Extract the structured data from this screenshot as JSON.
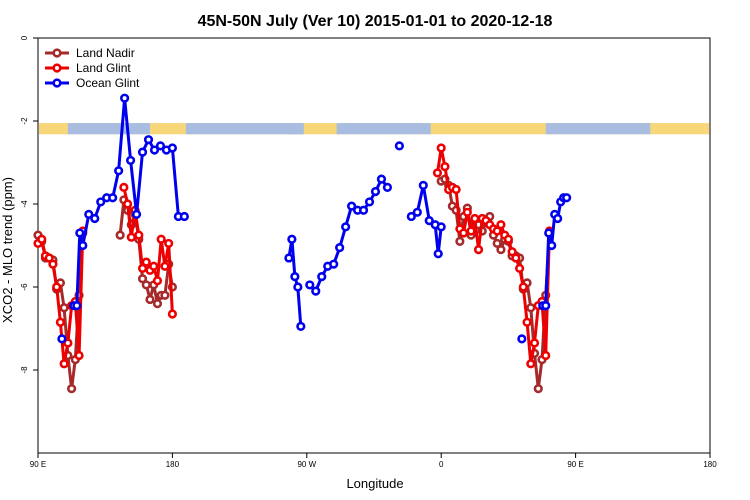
{
  "chart_data": {
    "type": "line",
    "title": "45N-50N July (Ver 10)   2015-01-01 to 2020-12-18",
    "xlabel": "Longitude",
    "ylabel": "XCO2 - MLO trend (ppm)",
    "xlim": [
      90,
      450
    ],
    "ylim": [
      -10,
      0
    ],
    "xticks": [
      {
        "value": 90,
        "label": "90 E"
      },
      {
        "value": 180,
        "label": "180"
      },
      {
        "value": 270,
        "label": "90 W"
      },
      {
        "value": 360,
        "label": "0"
      },
      {
        "value": 450,
        "label": "90 E"
      },
      {
        "value": 540,
        "label": "180"
      }
    ],
    "yticks": [
      {
        "value": 0,
        "label": "0"
      },
      {
        "value": -2,
        "label": "-2"
      },
      {
        "value": -4,
        "label": "-4"
      },
      {
        "value": -6,
        "label": "-6"
      },
      {
        "value": -8,
        "label": "-8"
      }
    ],
    "legend_position": "top-left",
    "land_mask_band": {
      "y_top": -2.05,
      "y_bottom": -2.32,
      "land_color": "#f7d77a",
      "ocean_color": "#a8bde0"
    },
    "series": [
      {
        "name": "Land Nadir",
        "color": "#a52a2a",
        "segments": [
          [
            [
              90,
              -4.75
            ],
            [
              92.5,
              -4.9
            ],
            [
              95,
              -5.3
            ],
            [
              97.5,
              -5.3
            ],
            [
              100,
              -5.35
            ],
            [
              102.5,
              -6.05
            ],
            [
              105,
              -5.9
            ],
            [
              107.5,
              -6.5
            ],
            [
              110,
              -7.65
            ],
            [
              112.5,
              -8.45
            ],
            [
              115,
              -7.75
            ],
            [
              117.5,
              -6.2
            ],
            [
              120,
              -4.7
            ]
          ],
          [
            [
              145,
              -4.75
            ],
            [
              147.5,
              -3.9
            ],
            [
              150,
              -4.15
            ],
            [
              152.5,
              -4.5
            ],
            [
              155,
              -4.25
            ],
            [
              157.5,
              -4.85
            ],
            [
              160,
              -5.8
            ],
            [
              162.5,
              -5.95
            ],
            [
              165,
              -6.3
            ],
            [
              167.5,
              -5.95
            ],
            [
              170,
              -6.4
            ],
            [
              172.5,
              -6.2
            ],
            [
              175,
              -6.2
            ],
            [
              177.5,
              -5.45
            ],
            [
              180,
              -6.0
            ]
          ],
          [
            [
              360,
              -3.45
            ],
            [
              362.5,
              -3.4
            ],
            [
              365,
              -3.55
            ],
            [
              367.5,
              -4.05
            ],
            [
              370,
              -4.15
            ],
            [
              372.5,
              -4.9
            ],
            [
              375,
              -4.3
            ],
            [
              377.5,
              -4.1
            ],
            [
              380,
              -4.75
            ],
            [
              382.5,
              -4.45
            ],
            [
              385,
              -4.5
            ],
            [
              387.5,
              -4.65
            ],
            [
              390,
              -4.45
            ],
            [
              392.5,
              -4.3
            ],
            [
              395,
              -4.75
            ],
            [
              397.5,
              -4.95
            ],
            [
              400,
              -5.1
            ],
            [
              402.5,
              -4.85
            ],
            [
              405,
              -4.9
            ],
            [
              407.5,
              -5.25
            ],
            [
              410,
              -5.25
            ],
            [
              412.5,
              -5.3
            ],
            [
              415,
              -6.05
            ],
            [
              417.5,
              -5.9
            ],
            [
              420,
              -6.5
            ],
            [
              422.5,
              -7.6
            ],
            [
              425,
              -8.45
            ],
            [
              427.5,
              -7.75
            ],
            [
              430,
              -6.2
            ],
            [
              432.5,
              -4.7
            ]
          ]
        ]
      },
      {
        "name": "Land Glint",
        "color": "#ee0000",
        "segments": [
          [
            [
              90,
              -4.95
            ],
            [
              92.5,
              -4.85
            ],
            [
              95,
              -5.25
            ],
            [
              97.5,
              -5.3
            ],
            [
              100,
              -5.45
            ],
            [
              102.5,
              -6.0
            ],
            [
              105,
              -6.85
            ],
            [
              107.5,
              -7.85
            ],
            [
              110,
              -7.35
            ],
            [
              112.5,
              -6.45
            ],
            [
              115,
              -6.35
            ],
            [
              117.5,
              -7.65
            ],
            [
              120,
              -4.65
            ]
          ],
          [
            [
              147.5,
              -3.6
            ],
            [
              150,
              -4.0
            ],
            [
              152.5,
              -4.8
            ],
            [
              155,
              -4.15
            ],
            [
              157.5,
              -4.75
            ],
            [
              160,
              -5.55
            ],
            [
              162.5,
              -5.4
            ],
            [
              165,
              -5.6
            ],
            [
              167.5,
              -5.5
            ],
            [
              170,
              -5.85
            ],
            [
              172.5,
              -4.85
            ],
            [
              175,
              -5.5
            ],
            [
              177.5,
              -4.95
            ],
            [
              180,
              -6.65
            ]
          ],
          [
            [
              357.5,
              -3.25
            ],
            [
              360,
              -2.65
            ],
            [
              362.5,
              -3.1
            ],
            [
              365,
              -3.65
            ],
            [
              367.5,
              -3.6
            ],
            [
              370,
              -3.65
            ],
            [
              372.5,
              -4.6
            ],
            [
              375,
              -4.7
            ],
            [
              377.5,
              -4.2
            ],
            [
              380,
              -4.65
            ],
            [
              382.5,
              -4.35
            ],
            [
              385,
              -5.1
            ],
            [
              387.5,
              -4.35
            ],
            [
              390,
              -4.4
            ],
            [
              392.5,
              -4.5
            ],
            [
              395,
              -4.6
            ],
            [
              397.5,
              -4.65
            ],
            [
              400,
              -4.5
            ],
            [
              402.5,
              -4.75
            ],
            [
              405,
              -4.85
            ],
            [
              407.5,
              -5.15
            ],
            [
              410,
              -5.3
            ],
            [
              412.5,
              -5.55
            ],
            [
              415,
              -6.0
            ],
            [
              417.5,
              -6.85
            ],
            [
              420,
              -7.85
            ],
            [
              422.5,
              -7.35
            ],
            [
              425,
              -6.45
            ],
            [
              427.5,
              -6.35
            ],
            [
              430,
              -7.65
            ],
            [
              432.5,
              -4.65
            ]
          ]
        ]
      },
      {
        "name": "Ocean Glint",
        "color": "#0000ee",
        "segments": [
          [
            [
              106,
              -7.25
            ]
          ],
          [
            [
              114,
              -6.45
            ],
            [
              116,
              -6.45
            ],
            [
              118,
              -4.7
            ],
            [
              120,
              -5.0
            ],
            [
              124,
              -4.25
            ],
            [
              128,
              -4.35
            ],
            [
              132,
              -3.95
            ],
            [
              136,
              -3.85
            ],
            [
              140,
              -3.85
            ],
            [
              144,
              -3.2
            ],
            [
              148,
              -1.45
            ],
            [
              152,
              -2.95
            ],
            [
              156,
              -4.25
            ],
            [
              160,
              -2.75
            ],
            [
              164,
              -2.45
            ],
            [
              168,
              -2.7
            ],
            [
              172,
              -2.6
            ],
            [
              176,
              -2.7
            ],
            [
              180,
              -2.65
            ],
            [
              184,
              -4.3
            ],
            [
              188,
              -4.3
            ]
          ],
          [
            [
              258,
              -5.3
            ],
            [
              260,
              -4.85
            ],
            [
              262,
              -5.75
            ],
            [
              264,
              -6.0
            ],
            [
              266,
              -6.95
            ]
          ],
          [
            [
              272,
              -5.95
            ],
            [
              276,
              -6.1
            ],
            [
              280,
              -5.75
            ],
            [
              284,
              -5.5
            ],
            [
              288,
              -5.45
            ],
            [
              292,
              -5.05
            ],
            [
              296,
              -4.55
            ],
            [
              300,
              -4.05
            ],
            [
              304,
              -4.15
            ],
            [
              308,
              -4.15
            ],
            [
              312,
              -3.95
            ],
            [
              316,
              -3.7
            ],
            [
              320,
              -3.4
            ],
            [
              324,
              -3.6
            ]
          ],
          [
            [
              332,
              -2.6
            ]
          ],
          [
            [
              340,
              -4.3
            ],
            [
              344,
              -4.2
            ],
            [
              348,
              -3.55
            ],
            [
              352,
              -4.4
            ]
          ],
          [
            [
              356,
              -4.5
            ],
            [
              358,
              -5.2
            ],
            [
              360,
              -4.55
            ]
          ],
          [
            [
              414,
              -7.25
            ]
          ],
          [
            [
              428,
              -6.45
            ],
            [
              430,
              -6.45
            ],
            [
              432,
              -4.7
            ],
            [
              434,
              -5.0
            ],
            [
              436,
              -4.25
            ],
            [
              438,
              -4.35
            ],
            [
              440,
              -3.95
            ],
            [
              442,
              -3.85
            ],
            [
              444,
              -3.85
            ]
          ]
        ]
      }
    ]
  }
}
